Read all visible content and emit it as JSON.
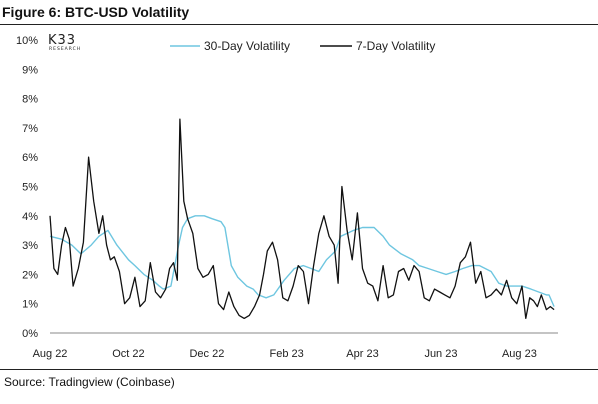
{
  "header": {
    "title": "Figure 6: BTC-USD Volatility"
  },
  "footer": {
    "source": "Source: Tradingview (Coinbase)"
  },
  "logo": {
    "main": "K33",
    "sub": "RESEARCH"
  },
  "chart_data": {
    "type": "line",
    "x_axis": {
      "type": "date",
      "start": "2022-08-01",
      "end": "2023-08-31",
      "tick_labels": [
        "Aug 22",
        "Oct 22",
        "Dec 22",
        "Feb 23",
        "Apr 23",
        "Jun 23",
        "Aug 23"
      ],
      "tick_dates": [
        "2022-08-01",
        "2022-10-01",
        "2022-12-01",
        "2023-02-01",
        "2023-04-01",
        "2023-06-01",
        "2023-08-01"
      ]
    },
    "y_axis": {
      "min": 0,
      "max": 10,
      "unit": "%",
      "tick_labels": [
        "0%",
        "1%",
        "2%",
        "3%",
        "4%",
        "5%",
        "6%",
        "7%",
        "8%",
        "9%",
        "10%"
      ]
    },
    "legend_position": "top",
    "grid": false,
    "series": [
      {
        "name": "30-Day Volatility",
        "color": "#6ec6e0",
        "x": [
          "2022-08-01",
          "2022-08-10",
          "2022-08-18",
          "2022-08-25",
          "2022-09-02",
          "2022-09-08",
          "2022-09-15",
          "2022-09-22",
          "2022-10-01",
          "2022-10-06",
          "2022-10-13",
          "2022-10-20",
          "2022-10-25",
          "2022-10-28",
          "2022-11-03",
          "2022-11-09",
          "2022-11-12",
          "2022-11-16",
          "2022-11-22",
          "2022-11-29",
          "2022-12-05",
          "2022-12-12",
          "2022-12-15",
          "2022-12-20",
          "2022-12-25",
          "2023-01-01",
          "2023-01-06",
          "2023-01-10",
          "2023-01-16",
          "2023-01-22",
          "2023-01-30",
          "2023-02-07",
          "2023-02-14",
          "2023-02-20",
          "2023-02-26",
          "2023-03-04",
          "2023-03-11",
          "2023-03-15",
          "2023-03-20",
          "2023-03-25",
          "2023-04-01",
          "2023-04-10",
          "2023-04-17",
          "2023-04-22",
          "2023-05-01",
          "2023-05-10",
          "2023-05-15",
          "2023-05-22",
          "2023-05-29",
          "2023-06-05",
          "2023-06-12",
          "2023-06-18",
          "2023-06-25",
          "2023-07-01",
          "2023-07-10",
          "2023-07-16",
          "2023-07-22",
          "2023-07-28",
          "2023-08-03",
          "2023-08-10",
          "2023-08-16",
          "2023-08-22",
          "2023-08-24",
          "2023-08-28"
        ],
        "y": [
          3.3,
          3.2,
          3.0,
          2.7,
          3.0,
          3.3,
          3.5,
          3.0,
          2.5,
          2.3,
          2.0,
          1.8,
          1.6,
          1.5,
          1.6,
          3.0,
          3.6,
          3.9,
          4.0,
          4.0,
          3.9,
          3.8,
          3.6,
          2.3,
          1.9,
          1.6,
          1.5,
          1.3,
          1.2,
          1.3,
          1.8,
          2.2,
          2.3,
          2.2,
          2.1,
          2.5,
          2.8,
          3.3,
          3.4,
          3.5,
          3.6,
          3.6,
          3.3,
          3.0,
          2.7,
          2.5,
          2.3,
          2.2,
          2.1,
          2.0,
          2.1,
          2.2,
          2.3,
          2.3,
          2.1,
          1.7,
          1.6,
          1.6,
          1.6,
          1.5,
          1.4,
          1.3,
          1.3,
          0.9
        ]
      },
      {
        "name": "7-Day Volatility",
        "color": "#111111",
        "x": [
          "2022-08-01",
          "2022-08-04",
          "2022-08-07",
          "2022-08-10",
          "2022-08-13",
          "2022-08-16",
          "2022-08-19",
          "2022-08-23",
          "2022-08-27",
          "2022-08-31",
          "2022-09-04",
          "2022-09-08",
          "2022-09-11",
          "2022-09-14",
          "2022-09-17",
          "2022-09-20",
          "2022-09-24",
          "2022-09-28",
          "2022-10-02",
          "2022-10-06",
          "2022-10-10",
          "2022-10-14",
          "2022-10-18",
          "2022-10-22",
          "2022-10-26",
          "2022-10-30",
          "2022-11-02",
          "2022-11-05",
          "2022-11-08",
          "2022-11-10",
          "2022-11-13",
          "2022-11-16",
          "2022-11-20",
          "2022-11-24",
          "2022-11-28",
          "2022-12-02",
          "2022-12-06",
          "2022-12-10",
          "2022-12-14",
          "2022-12-18",
          "2022-12-22",
          "2022-12-26",
          "2022-12-30",
          "2023-01-03",
          "2023-01-07",
          "2023-01-11",
          "2023-01-14",
          "2023-01-17",
          "2023-01-21",
          "2023-01-25",
          "2023-01-29",
          "2023-02-02",
          "2023-02-06",
          "2023-02-10",
          "2023-02-14",
          "2023-02-18",
          "2023-02-22",
          "2023-02-26",
          "2023-03-02",
          "2023-03-06",
          "2023-03-10",
          "2023-03-13",
          "2023-03-16",
          "2023-03-20",
          "2023-03-24",
          "2023-03-28",
          "2023-04-01",
          "2023-04-05",
          "2023-04-09",
          "2023-04-13",
          "2023-04-17",
          "2023-04-21",
          "2023-04-25",
          "2023-04-29",
          "2023-05-03",
          "2023-05-07",
          "2023-05-11",
          "2023-05-15",
          "2023-05-19",
          "2023-05-23",
          "2023-05-27",
          "2023-05-31",
          "2023-06-04",
          "2023-06-08",
          "2023-06-12",
          "2023-06-16",
          "2023-06-20",
          "2023-06-24",
          "2023-06-28",
          "2023-07-02",
          "2023-07-06",
          "2023-07-10",
          "2023-07-14",
          "2023-07-18",
          "2023-07-22",
          "2023-07-26",
          "2023-07-30",
          "2023-08-03",
          "2023-08-06",
          "2023-08-09",
          "2023-08-12",
          "2023-08-15",
          "2023-08-18",
          "2023-08-22",
          "2023-08-25",
          "2023-08-28"
        ],
        "y": [
          4.0,
          2.2,
          2.0,
          3.0,
          3.6,
          3.2,
          1.6,
          2.2,
          3.1,
          6.0,
          4.5,
          3.4,
          4.0,
          3.0,
          2.5,
          2.6,
          2.1,
          1.0,
          1.2,
          1.9,
          0.9,
          1.1,
          2.4,
          1.4,
          1.2,
          1.5,
          2.2,
          2.4,
          1.8,
          7.3,
          4.5,
          3.9,
          3.4,
          2.2,
          1.9,
          2.0,
          2.3,
          1.0,
          0.8,
          1.4,
          0.9,
          0.6,
          0.5,
          0.6,
          0.9,
          1.3,
          2.0,
          2.8,
          3.1,
          2.5,
          1.2,
          1.1,
          1.6,
          2.3,
          2.1,
          1.0,
          2.3,
          3.4,
          4.0,
          3.3,
          3.0,
          1.7,
          5.0,
          3.5,
          2.5,
          4.1,
          2.2,
          1.7,
          1.6,
          1.1,
          2.3,
          1.2,
          1.3,
          2.1,
          2.2,
          1.8,
          2.3,
          2.1,
          1.2,
          1.1,
          1.5,
          1.4,
          1.3,
          1.2,
          1.6,
          2.4,
          2.6,
          3.1,
          1.7,
          2.1,
          1.2,
          1.3,
          1.5,
          1.3,
          1.8,
          1.2,
          1.0,
          1.6,
          0.5,
          1.2,
          1.1,
          0.9,
          1.3,
          0.8,
          0.9,
          0.8
        ]
      }
    ]
  }
}
